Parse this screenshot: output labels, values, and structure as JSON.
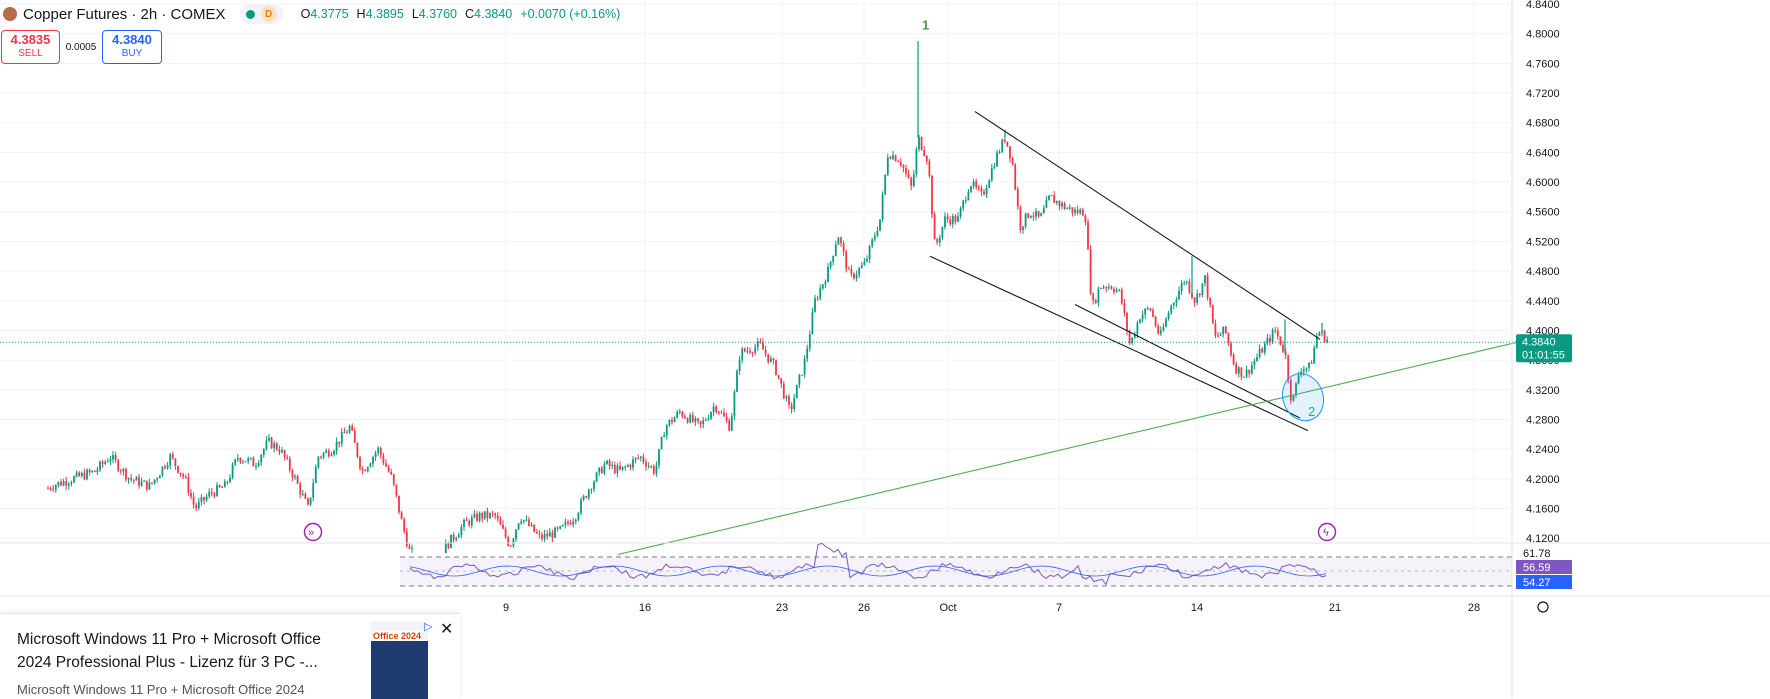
{
  "legend": {
    "title": "Copper Futures · 2h · COMEX",
    "interval_badge": "D",
    "ohlc": [
      {
        "k": "O",
        "v": "4.3775"
      },
      {
        "k": "H",
        "v": "4.3895"
      },
      {
        "k": "L",
        "v": "4.3760"
      },
      {
        "k": "C",
        "v": "4.3840"
      },
      {
        "k": "",
        "v": "+0.0070 (+0.16%)"
      }
    ]
  },
  "trade": {
    "sell_price": "4.3835",
    "sell_label": "SELL",
    "spread": "0.0005",
    "buy_price": "4.3840",
    "buy_label": "BUY"
  },
  "price_axis": {
    "labels": [
      "4.8400",
      "4.8000",
      "4.7600",
      "4.7200",
      "4.6800",
      "4.6400",
      "4.6000",
      "4.5600",
      "4.5200",
      "4.4800",
      "4.4400",
      "4.4000",
      "4.3600",
      "4.3200",
      "4.2800",
      "4.2400",
      "4.2000",
      "4.1600",
      "4.1200"
    ],
    "current_price": "4.3840",
    "countdown": "01:01:55"
  },
  "time_axis": {
    "labels": [
      "9",
      "16",
      "23",
      "26",
      "Oct",
      "7",
      "14",
      "21",
      "28"
    ]
  },
  "rsi": {
    "levels": [
      "61.78",
      "56.59",
      "54.27"
    ]
  },
  "annotations": {
    "wave1": "1",
    "wave2": "2"
  },
  "ad": {
    "title": "Microsoft Windows 11 Pro + Microsoft Office 2024 Professional Plus - Lizenz für 3 PC -...",
    "description": "Microsoft Windows 11 Pro + Microsoft Office 2024",
    "image_text": "Office 2024"
  },
  "colors": {
    "up": "#089981",
    "down": "#f23645",
    "rsi_line": "#7e57c2",
    "trendline": "#4caf50",
    "channel": "#131722"
  },
  "chart_data": {
    "type": "candlestick",
    "title": "Copper Futures · 2h · COMEX",
    "ylim": [
      4.1,
      4.84
    ],
    "x_tick_labels": [
      "9",
      "16",
      "23",
      "26",
      "Oct",
      "7",
      "14",
      "21",
      "28"
    ],
    "grid": true,
    "series": [
      {
        "name": "Copper Futures",
        "path": [
          [
            0,
            4.12
          ],
          [
            50,
            4.19
          ],
          [
            95,
            4.21
          ],
          [
            110,
            4.23
          ],
          [
            130,
            4.2
          ],
          [
            150,
            4.19
          ],
          [
            170,
            4.23
          ],
          [
            185,
            4.2
          ],
          [
            195,
            4.16
          ],
          [
            210,
            4.18
          ],
          [
            225,
            4.19
          ],
          [
            238,
            4.23
          ],
          [
            255,
            4.22
          ],
          [
            268,
            4.25
          ],
          [
            280,
            4.24
          ],
          [
            295,
            4.2
          ],
          [
            308,
            4.16
          ],
          [
            318,
            4.23
          ],
          [
            332,
            4.24
          ],
          [
            350,
            4.27
          ],
          [
            362,
            4.21
          ],
          [
            378,
            4.24
          ],
          [
            392,
            4.2
          ],
          [
            402,
            4.14
          ],
          [
            410,
            4.1
          ],
          [
            440,
            4.1
          ],
          [
            465,
            4.14
          ],
          [
            480,
            4.15
          ],
          [
            495,
            4.15
          ],
          [
            510,
            4.11
          ],
          [
            520,
            4.15
          ],
          [
            540,
            4.12
          ],
          [
            560,
            4.13
          ],
          [
            575,
            4.15
          ],
          [
            590,
            4.19
          ],
          [
            605,
            4.22
          ],
          [
            620,
            4.21
          ],
          [
            640,
            4.23
          ],
          [
            655,
            4.21
          ],
          [
            665,
            4.27
          ],
          [
            680,
            4.29
          ],
          [
            700,
            4.27
          ],
          [
            715,
            4.3
          ],
          [
            730,
            4.27
          ],
          [
            740,
            4.37
          ],
          [
            760,
            4.38
          ],
          [
            775,
            4.35
          ],
          [
            790,
            4.29
          ],
          [
            805,
            4.36
          ],
          [
            815,
            4.44
          ],
          [
            828,
            4.48
          ],
          [
            838,
            4.53
          ],
          [
            850,
            4.47
          ],
          [
            865,
            4.49
          ],
          [
            880,
            4.55
          ],
          [
            888,
            4.64
          ],
          [
            900,
            4.63
          ],
          [
            912,
            4.59
          ],
          [
            918,
            4.66
          ],
          [
            928,
            4.63
          ],
          [
            935,
            4.51
          ],
          [
            945,
            4.55
          ],
          [
            958,
            4.55
          ],
          [
            970,
            4.6
          ],
          [
            982,
            4.58
          ],
          [
            995,
            4.63
          ],
          [
            1005,
            4.66
          ],
          [
            1012,
            4.63
          ],
          [
            1020,
            4.54
          ],
          [
            1030,
            4.56
          ],
          [
            1040,
            4.55
          ],
          [
            1050,
            4.58
          ],
          [
            1060,
            4.57
          ],
          [
            1075,
            4.56
          ],
          [
            1085,
            4.56
          ],
          [
            1092,
            4.43
          ],
          [
            1100,
            4.46
          ],
          [
            1112,
            4.46
          ],
          [
            1120,
            4.45
          ],
          [
            1130,
            4.38
          ],
          [
            1140,
            4.42
          ],
          [
            1150,
            4.43
          ],
          [
            1160,
            4.39
          ],
          [
            1170,
            4.43
          ],
          [
            1185,
            4.47
          ],
          [
            1195,
            4.44
          ],
          [
            1205,
            4.47
          ],
          [
            1215,
            4.39
          ],
          [
            1225,
            4.4
          ],
          [
            1235,
            4.35
          ],
          [
            1245,
            4.34
          ],
          [
            1255,
            4.36
          ],
          [
            1265,
            4.38
          ],
          [
            1275,
            4.4
          ],
          [
            1285,
            4.37
          ],
          [
            1292,
            4.3
          ],
          [
            1300,
            4.35
          ],
          [
            1310,
            4.35
          ],
          [
            1318,
            4.4
          ],
          [
            1330,
            4.384
          ]
        ],
        "wicks": [
          [
            918,
            4.79
          ],
          [
            1005,
            4.67
          ],
          [
            1192,
            4.5
          ],
          [
            1285,
            4.415
          ],
          [
            1322,
            4.41
          ]
        ]
      },
      {
        "name": "RSI",
        "levels": [
          61.78,
          56.59,
          54.27
        ]
      }
    ],
    "drawings": {
      "upper_channel": [
        [
          975,
          4.695
        ],
        [
          1320,
          4.388
        ]
      ],
      "lower_channel_1": [
        [
          930,
          4.5
        ],
        [
          1308,
          4.265
        ]
      ],
      "lower_channel_2": [
        [
          1075,
          4.435
        ],
        [
          1300,
          4.282
        ]
      ],
      "trendline": [
        [
          618,
          4.098
        ],
        [
          1520,
          4.385
        ]
      ]
    },
    "wave_labels": [
      {
        "label": "1",
        "x": 926,
        "price": 4.8
      },
      {
        "label": "2",
        "x": 1312,
        "price": 4.29
      }
    ]
  }
}
